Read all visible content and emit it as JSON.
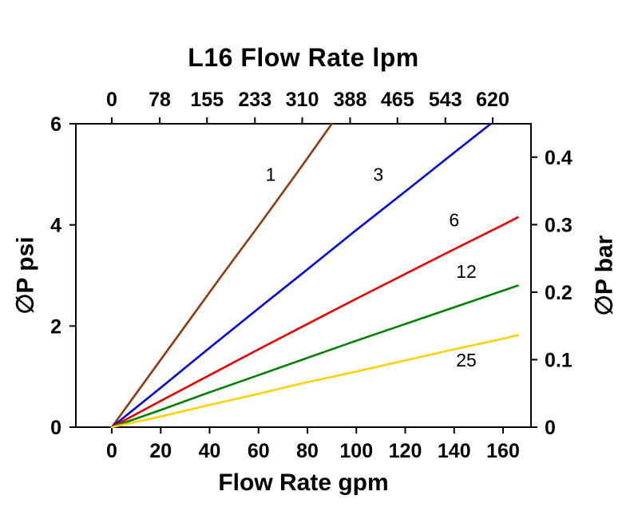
{
  "chart_data": {
    "type": "line",
    "title": "L16 Flow Rate lpm",
    "xlabel": "Flow Rate gpm",
    "ylabel": "∅P psi",
    "y2label": "∅P bar",
    "x_ticks_gpm": [
      0,
      20,
      40,
      60,
      80,
      100,
      120,
      140,
      160
    ],
    "x2_ticks_lpm": [
      0,
      78,
      155,
      233,
      310,
      388,
      465,
      543,
      620
    ],
    "y_ticks_psi": [
      0,
      2,
      4,
      6
    ],
    "y2_ticks_bar": [
      0,
      0.1,
      0.2,
      0.3,
      0.4
    ],
    "xlim_gpm": [
      0,
      160
    ],
    "ylim_psi": [
      0,
      6
    ],
    "grid": false,
    "legend": "inline-labels",
    "axis_color": "#000000",
    "series": [
      {
        "label": "1",
        "color": "#8d3a10",
        "label_at": [
          65,
          4.87
        ],
        "points": [
          [
            0,
            0
          ],
          [
            15,
            1.0
          ],
          [
            30,
            2.0
          ],
          [
            45,
            3.0
          ],
          [
            60,
            3.98
          ],
          [
            75,
            4.98
          ],
          [
            90,
            6.0
          ]
        ]
      },
      {
        "label": "3",
        "color": "#0000dd",
        "label_at": [
          109,
          4.87
        ],
        "points": [
          [
            0,
            0
          ],
          [
            20,
            0.78
          ],
          [
            40,
            1.57
          ],
          [
            60,
            2.35
          ],
          [
            80,
            3.12
          ],
          [
            100,
            3.9
          ],
          [
            120,
            4.66
          ],
          [
            140,
            5.43
          ],
          [
            155,
            6.0
          ]
        ]
      },
      {
        "label": "6",
        "color": "#e80000",
        "label_at": [
          140,
          3.97
        ],
        "points": [
          [
            0,
            0
          ],
          [
            20,
            0.52
          ],
          [
            40,
            1.03
          ],
          [
            60,
            1.54
          ],
          [
            80,
            2.04
          ],
          [
            100,
            2.54
          ],
          [
            120,
            3.03
          ],
          [
            140,
            3.52
          ],
          [
            160,
            4.0
          ],
          [
            166,
            4.15
          ]
        ]
      },
      {
        "label": "12",
        "color": "#008000",
        "label_at": [
          145,
          2.95
        ],
        "points": [
          [
            0,
            0
          ],
          [
            20,
            0.34
          ],
          [
            40,
            0.69
          ],
          [
            60,
            1.03
          ],
          [
            80,
            1.37
          ],
          [
            100,
            1.71
          ],
          [
            120,
            2.04
          ],
          [
            140,
            2.37
          ],
          [
            160,
            2.7
          ],
          [
            166,
            2.8
          ]
        ]
      },
      {
        "label": "25",
        "color": "#fed10a",
        "label_at": [
          145,
          1.2
        ],
        "points": [
          [
            0,
            0
          ],
          [
            20,
            0.21
          ],
          [
            40,
            0.44
          ],
          [
            60,
            0.66
          ],
          [
            80,
            0.89
          ],
          [
            100,
            1.1
          ],
          [
            120,
            1.32
          ],
          [
            140,
            1.54
          ],
          [
            160,
            1.75
          ],
          [
            166,
            1.82
          ]
        ]
      }
    ]
  }
}
